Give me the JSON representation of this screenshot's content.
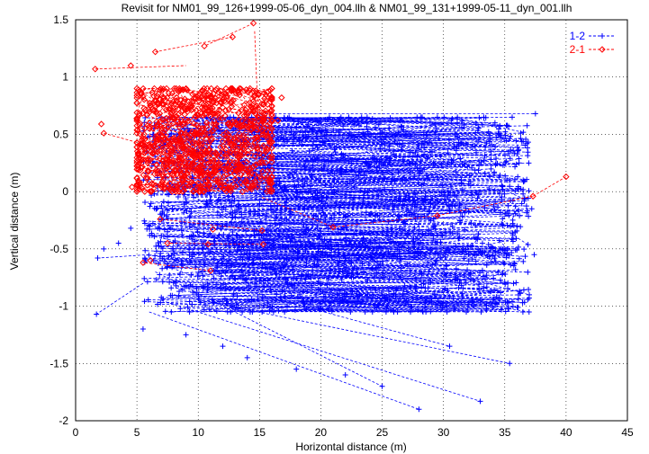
{
  "chart_data": {
    "type": "scatter",
    "title": "Revisit for NM01_99_126+1999-05-06_dyn_004.llh & NM01_99_131+1999-05-11_dyn_001.llh",
    "xlabel": "Horizontal distance (m)",
    "ylabel": "Vertical distance (m)",
    "xlim": [
      0,
      45
    ],
    "ylim": [
      -2,
      1.5
    ],
    "xticks": [
      0,
      5,
      10,
      15,
      20,
      25,
      30,
      35,
      40,
      45
    ],
    "yticks": [
      -2,
      -1.5,
      -1,
      -0.5,
      0,
      0.5,
      1,
      1.5
    ],
    "grid": true,
    "legend_position": "top-right",
    "series": [
      {
        "name": "1-2",
        "color": "#0000ff",
        "marker": "plus",
        "line": "dashed",
        "cluster": {
          "x_range": [
            5.5,
            37
          ],
          "y_range": [
            -1.05,
            0.65
          ],
          "count": 900
        },
        "points": [
          {
            "x": 37.5,
            "y": 0.68
          },
          {
            "x": 34.2,
            "y": 0.6
          },
          {
            "x": 36.8,
            "y": 0.42
          },
          {
            "x": 37.2,
            "y": -0.15
          },
          {
            "x": 37.4,
            "y": -0.55
          },
          {
            "x": 37.0,
            "y": -0.9
          },
          {
            "x": 35.4,
            "y": -1.5
          },
          {
            "x": 33.0,
            "y": -1.83
          },
          {
            "x": 28.0,
            "y": -1.9
          },
          {
            "x": 25.0,
            "y": -1.7
          },
          {
            "x": 30.5,
            "y": -1.35
          },
          {
            "x": 22.0,
            "y": -1.6
          },
          {
            "x": 18.0,
            "y": -1.55
          },
          {
            "x": 14.0,
            "y": -1.45
          },
          {
            "x": 1.7,
            "y": -1.07
          },
          {
            "x": 1.8,
            "y": -0.58
          },
          {
            "x": 2.3,
            "y": -0.5
          },
          {
            "x": 3.5,
            "y": -0.45
          },
          {
            "x": 4.5,
            "y": -0.32
          },
          {
            "x": 5.5,
            "y": -1.2
          },
          {
            "x": 9.0,
            "y": -1.25
          },
          {
            "x": 12.0,
            "y": -1.35
          },
          {
            "x": 36.5,
            "y": 0.1
          },
          {
            "x": 36.0,
            "y": -0.3
          }
        ],
        "pairs": [
          [
            {
              "x": 14,
              "y": 0.68
            },
            {
              "x": 37.5,
              "y": 0.68
            }
          ],
          [
            {
              "x": 15,
              "y": 0.62
            },
            {
              "x": 34.2,
              "y": 0.6
            }
          ],
          [
            {
              "x": 6,
              "y": -1.05
            },
            {
              "x": 28,
              "y": -1.9
            }
          ],
          [
            {
              "x": 7,
              "y": -0.95
            },
            {
              "x": 33,
              "y": -1.83
            }
          ],
          [
            {
              "x": 8,
              "y": -0.9
            },
            {
              "x": 35.4,
              "y": -1.5
            }
          ],
          [
            {
              "x": 6.5,
              "y": -0.7
            },
            {
              "x": 25,
              "y": -1.7
            }
          ],
          [
            {
              "x": 5.5,
              "y": -0.8
            },
            {
              "x": 1.7,
              "y": -1.07
            }
          ],
          [
            {
              "x": 6,
              "y": -0.55
            },
            {
              "x": 1.8,
              "y": -0.58
            }
          ],
          [
            {
              "x": 7,
              "y": -0.3
            },
            {
              "x": 37.2,
              "y": -0.15
            }
          ],
          [
            {
              "x": 9,
              "y": -0.1
            },
            {
              "x": 37.0,
              "y": -0.9
            }
          ],
          [
            {
              "x": 10,
              "y": -0.75
            },
            {
              "x": 30.5,
              "y": -1.35
            }
          ]
        ]
      },
      {
        "name": "2-1",
        "color": "#ff0000",
        "marker": "diamond",
        "line": "dashed",
        "cluster": {
          "x_range": [
            5,
            16
          ],
          "y_range": [
            0.0,
            0.9
          ],
          "count": 450
        },
        "points": [
          {
            "x": 14.5,
            "y": 1.47
          },
          {
            "x": 12.8,
            "y": 1.35
          },
          {
            "x": 10.5,
            "y": 1.27
          },
          {
            "x": 6.5,
            "y": 1.22
          },
          {
            "x": 1.6,
            "y": 1.07
          },
          {
            "x": 4.5,
            "y": 1.1
          },
          {
            "x": 2.1,
            "y": 0.59
          },
          {
            "x": 2.3,
            "y": 0.51
          },
          {
            "x": 16.8,
            "y": 0.82
          },
          {
            "x": 16.5,
            "y": 0.62
          },
          {
            "x": 40.0,
            "y": 0.13
          },
          {
            "x": 37.3,
            "y": -0.04
          },
          {
            "x": 21.0,
            "y": -0.31
          },
          {
            "x": 29.5,
            "y": -0.21
          },
          {
            "x": 15.2,
            "y": -0.34
          },
          {
            "x": 15.3,
            "y": -0.46
          },
          {
            "x": 11.2,
            "y": -0.33
          },
          {
            "x": 10.8,
            "y": -0.46
          },
          {
            "x": 5.5,
            "y": -0.62
          },
          {
            "x": 6.1,
            "y": -0.6
          },
          {
            "x": 11.0,
            "y": -0.69
          },
          {
            "x": 6.9,
            "y": -0.24
          },
          {
            "x": 7.5,
            "y": -0.45
          },
          {
            "x": 4.6,
            "y": 0.04
          }
        ],
        "pairs": [
          [
            {
              "x": 14.5,
              "y": 1.47
            },
            {
              "x": 10.5,
              "y": 1.27
            }
          ],
          [
            {
              "x": 12.8,
              "y": 1.35
            },
            {
              "x": 6.5,
              "y": 1.22
            }
          ],
          [
            {
              "x": 1.6,
              "y": 1.07
            },
            {
              "x": 9.0,
              "y": 1.1
            }
          ],
          [
            {
              "x": 14.6,
              "y": 1.4
            },
            {
              "x": 15.0,
              "y": 0.35
            }
          ],
          [
            {
              "x": 15.2,
              "y": -0.05
            },
            {
              "x": 21.0,
              "y": -0.31
            }
          ],
          [
            {
              "x": 21.0,
              "y": -0.31
            },
            {
              "x": 29.5,
              "y": -0.21
            }
          ],
          [
            {
              "x": 29.5,
              "y": -0.21
            },
            {
              "x": 37.3,
              "y": -0.04
            }
          ],
          [
            {
              "x": 37.3,
              "y": -0.04
            },
            {
              "x": 40.0,
              "y": 0.13
            }
          ],
          [
            {
              "x": 11.0,
              "y": -0.69
            },
            {
              "x": 5.5,
              "y": -0.62
            }
          ],
          [
            {
              "x": 15.2,
              "y": -0.34
            },
            {
              "x": 6.9,
              "y": -0.24
            }
          ],
          [
            {
              "x": 15.3,
              "y": -0.46
            },
            {
              "x": 7.5,
              "y": -0.45
            }
          ],
          [
            {
              "x": 2.3,
              "y": 0.51
            },
            {
              "x": 6.0,
              "y": 0.4
            }
          ]
        ]
      }
    ]
  }
}
